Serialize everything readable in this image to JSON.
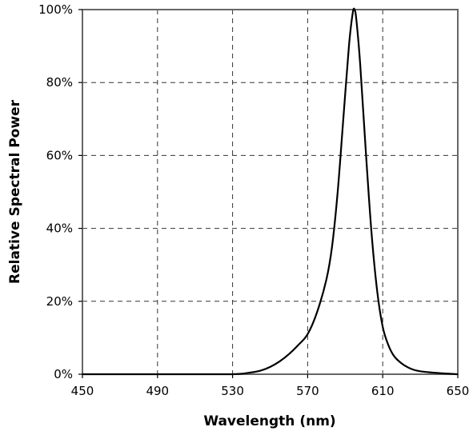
{
  "chart_data": {
    "type": "line",
    "title": "",
    "xlabel": "Wavelength (nm)",
    "ylabel": "Relative Spectral Power",
    "xlim": [
      450,
      650
    ],
    "ylim": [
      0,
      100
    ],
    "grid": true,
    "x_ticks": [
      450,
      490,
      530,
      570,
      610,
      650
    ],
    "x_tick_labels": [
      "450",
      "490",
      "530",
      "570",
      "610",
      "650"
    ],
    "y_ticks": [
      0,
      20,
      40,
      60,
      80,
      100
    ],
    "y_tick_labels": [
      "0%",
      "20%",
      "40%",
      "60%",
      "80%",
      "100%"
    ],
    "series": [
      {
        "x": [
          450,
          500,
          530,
          540,
          545,
          550,
          555,
          560,
          565,
          570,
          575,
          580,
          583,
          586,
          589,
          592,
          594,
          595,
          596,
          598,
          601,
          604,
          607,
          610,
          613,
          616,
          620,
          625,
          630,
          640,
          650
        ],
        "values": [
          0,
          0,
          0,
          0.5,
          1,
          2,
          3.5,
          5.5,
          8,
          11,
          17,
          26,
          35,
          50,
          70,
          90,
          99,
          100,
          97,
          85,
          61,
          39,
          23,
          13,
          8,
          5,
          3,
          1.5,
          0.8,
          0.3,
          0
        ]
      }
    ]
  }
}
